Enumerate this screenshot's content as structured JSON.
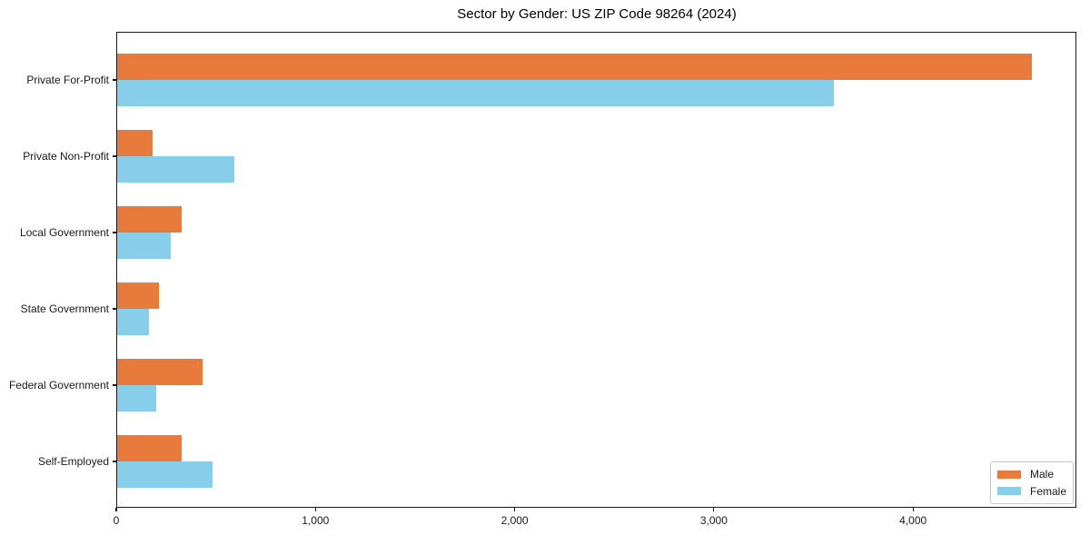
{
  "title": "Sector by Gender: US ZIP Code 98264 (2024)",
  "chart_data": {
    "type": "bar",
    "orientation": "horizontal",
    "title": "Sector by Gender: US ZIP Code 98264 (2024)",
    "categories": [
      "Private For-Profit",
      "Private Non-Profit",
      "Local Government",
      "State Government",
      "Federal Government",
      "Self-Employed"
    ],
    "series": [
      {
        "name": "Male",
        "color": "#E87A3B",
        "values": [
          4590,
          180,
          325,
          210,
          430,
          325
        ]
      },
      {
        "name": "Female",
        "color": "#87CEEB",
        "values": [
          3600,
          590,
          270,
          160,
          195,
          480
        ]
      }
    ],
    "xlabel": "",
    "ylabel": "",
    "xlim": [
      0,
      4820
    ],
    "x_ticks": [
      {
        "value": 0,
        "label": "0"
      },
      {
        "value": 1000,
        "label": "1,000"
      },
      {
        "value": 2000,
        "label": "2,000"
      },
      {
        "value": 3000,
        "label": "3,000"
      },
      {
        "value": 4000,
        "label": "4,000"
      }
    ],
    "grid": false,
    "legend_position": "lower right",
    "spine_color": "#1a1a1a",
    "background_color": "#ffffff"
  }
}
